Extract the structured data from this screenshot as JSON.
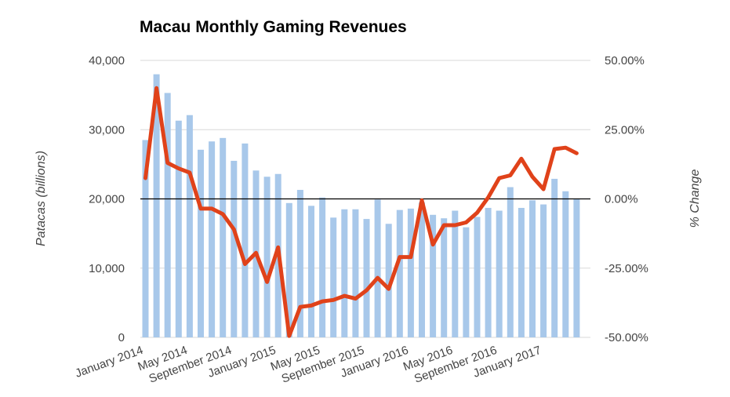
{
  "chart_data": {
    "type": "bar+line",
    "title": "Macau Monthly Gaming Revenues",
    "ylabel": "Patacas (billions)",
    "y2label": "% Change",
    "ylim": [
      0,
      40000
    ],
    "y2lim": [
      -50,
      50
    ],
    "y_ticks": [
      "0",
      "10,000",
      "20,000",
      "30,000",
      "40,000"
    ],
    "y2_ticks": [
      "-50.00%",
      "-25.00%",
      "0.00%",
      "25.00%",
      "50.00%"
    ],
    "x_tick_labels": [
      "January 2014",
      "May 2014",
      "September 2014",
      "January 2015",
      "May 2015",
      "September 2015",
      "January 2016",
      "May 2016",
      "September 2016",
      "January 2017"
    ],
    "grid": true,
    "legend": "none",
    "colors": {
      "bars": "#a8c8ea",
      "line": "#e0421a",
      "grid": "#d9d9d9",
      "zero_line": "#000000"
    },
    "series": [
      {
        "type": "bar",
        "axis": "left",
        "values": [
          28500,
          38000,
          35300,
          31300,
          32100,
          27100,
          28300,
          28800,
          25500,
          28000,
          24100,
          23200,
          23600,
          19400,
          21300,
          19000,
          20200,
          17300,
          18500,
          18500,
          17100,
          19900,
          16400,
          18400,
          18600,
          19500,
          17700,
          17200,
          18300,
          15900,
          17400,
          18700,
          18300,
          21700,
          18700,
          19800,
          19200,
          22900,
          21100,
          20000
        ]
      },
      {
        "type": "line",
        "axis": "right",
        "values": [
          7.5,
          40,
          13,
          11,
          9.5,
          -3.5,
          -3.5,
          -5.5,
          -11,
          -23.5,
          -19.5,
          -30,
          -17.5,
          -49.5,
          -39,
          -38.5,
          -37,
          -36.5,
          -35,
          -36,
          -33,
          -28.5,
          -32.5,
          -21,
          -21,
          -0.5,
          -16.5,
          -9.5,
          -9.5,
          -8.5,
          -5,
          0.5,
          7.5,
          8.5,
          14.5,
          8,
          3.5,
          18,
          18.5,
          16.5
        ]
      }
    ]
  }
}
